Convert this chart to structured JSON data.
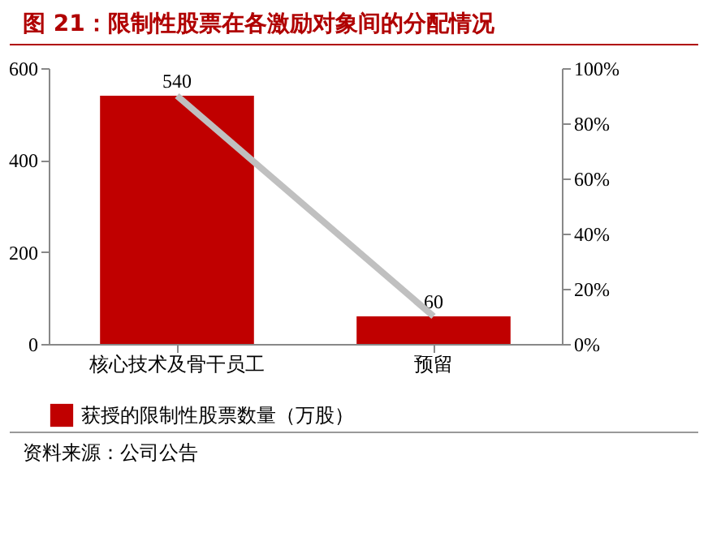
{
  "chart_data": {
    "type": "bar",
    "title": "图 21：限制性股票在各激励对象间的分配情况",
    "categories": [
      "核心技术及骨干员工",
      "预留"
    ],
    "series": [
      {
        "name": "获授的限制性股票数量（万股）",
        "color": "#c00000",
        "values": [
          540,
          60
        ],
        "value_labels": [
          "540",
          "60"
        ]
      },
      {
        "type": "line",
        "axis": "y2",
        "color": "#c0c0c0",
        "values": [
          90,
          10
        ]
      }
    ],
    "ylim": [
      0,
      600
    ],
    "yticks": [
      0,
      200,
      400,
      600
    ],
    "y2lim": [
      0,
      100
    ],
    "y2ticks": [
      {
        "value": 0,
        "label": "0%"
      },
      {
        "value": 20,
        "label": "20%"
      },
      {
        "value": 40,
        "label": "40%"
      },
      {
        "value": 60,
        "label": "60%"
      },
      {
        "value": 80,
        "label": "80%"
      },
      {
        "value": 100,
        "label": "100%"
      }
    ],
    "grid": false,
    "legend": "bottom",
    "marker": "none",
    "line_style": "solid",
    "annotations": [
      "资料来源：公司公告"
    ]
  }
}
